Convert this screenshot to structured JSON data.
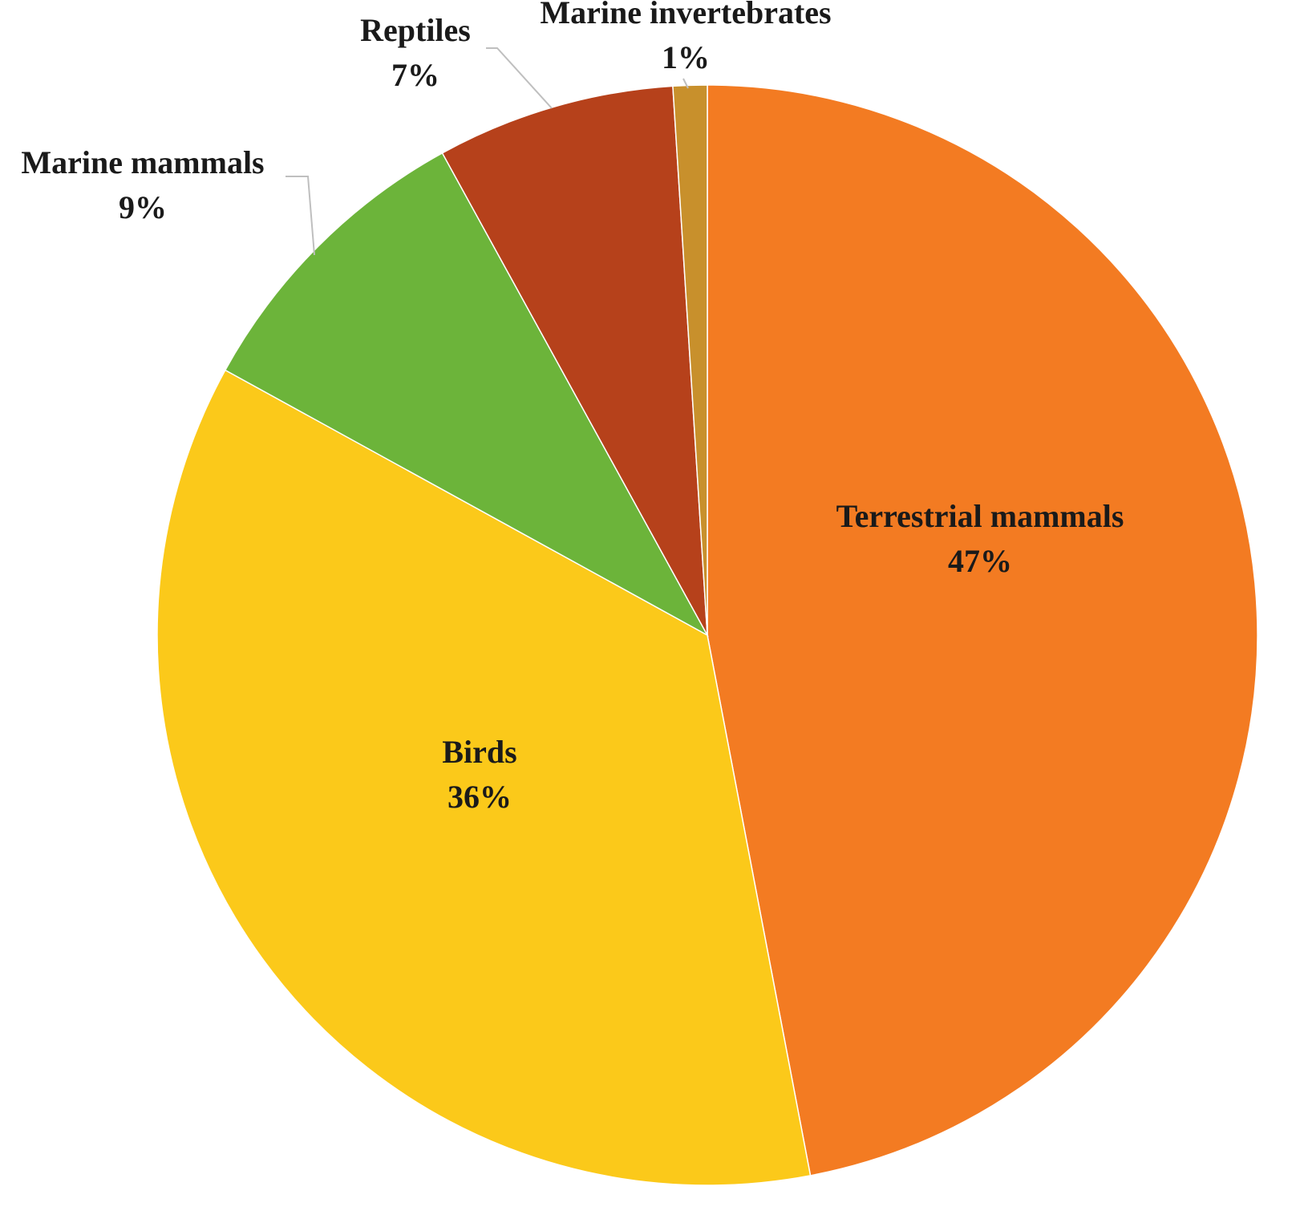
{
  "chart_data": {
    "type": "pie",
    "categories": [
      "Terrestrial mammals",
      "Birds",
      "Marine mammals",
      "Reptiles",
      "Marine invertebrates"
    ],
    "values": [
      47,
      36,
      9,
      7,
      1
    ],
    "value_labels": [
      "47%",
      "36%",
      "9%",
      "7%",
      "1%"
    ],
    "colors": [
      "#f37b22",
      "#fbc91a",
      "#6cb43a",
      "#b6411b",
      "#c8902c"
    ]
  }
}
